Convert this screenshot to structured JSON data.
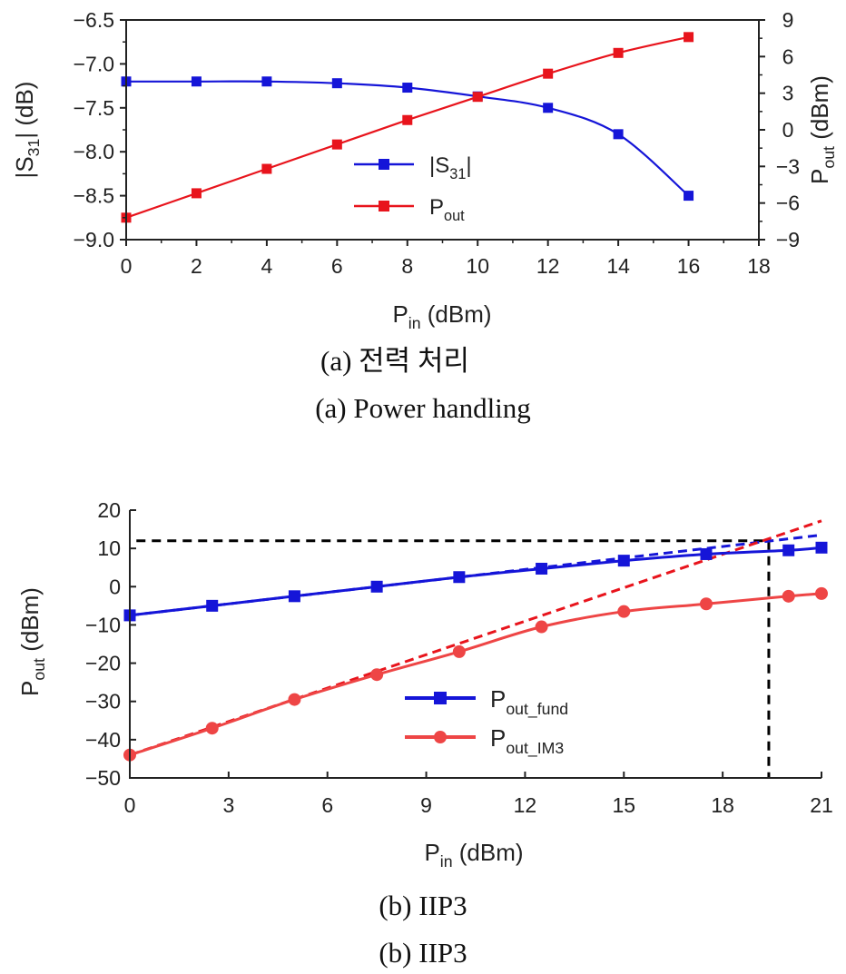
{
  "chart_data": [
    {
      "type": "line",
      "xlabel": {
        "main": "P",
        "sub": "in",
        "unit": " (dBm)"
      },
      "ylabel_left": {
        "main": "|S",
        "sub": "31",
        "unit": "| (dB)"
      },
      "ylabel_right": {
        "main": "P",
        "sub": "out",
        "unit": " (dBm)"
      },
      "xlim": [
        0,
        18
      ],
      "ylim_left": [
        -9.0,
        -6.5
      ],
      "ylim_right": [
        -9,
        9
      ],
      "xticks": [
        0,
        2,
        4,
        6,
        8,
        10,
        12,
        14,
        16,
        18
      ],
      "xtick_labels": [
        "0",
        "2",
        "4",
        "6",
        "8",
        "10",
        "12",
        "14",
        "16",
        "18"
      ],
      "yticks_left": [
        -9.0,
        -8.5,
        -8.0,
        -7.5,
        -7.0,
        -6.5
      ],
      "ytick_labels_left": [
        "−9.0",
        "−8.5",
        "−8.0",
        "−7.5",
        "−7.0",
        "−6.5"
      ],
      "yticks_right": [
        -9,
        -6,
        -3,
        0,
        3,
        6,
        9
      ],
      "ytick_labels_right": [
        "−9",
        "−6",
        "−3",
        "0",
        "3",
        "6",
        "9"
      ],
      "grid": false,
      "legend_position": "center",
      "series": [
        {
          "name": "|S",
          "name_sub": "31",
          "name_suffix": "|",
          "axis": "left",
          "color": "#1515d8",
          "x": [
            0,
            2,
            4,
            6,
            8,
            10,
            12,
            14,
            16
          ],
          "y": [
            -7.2,
            -7.2,
            -7.2,
            -7.22,
            -7.27,
            -7.37,
            -7.5,
            -7.8,
            -8.5
          ]
        },
        {
          "name": "P",
          "name_sub": "out",
          "name_suffix": "",
          "axis": "right",
          "color": "#e8141c",
          "x": [
            0,
            2,
            4,
            6,
            8,
            10,
            12,
            14,
            16
          ],
          "y": [
            -7.2,
            -5.2,
            -3.2,
            -1.2,
            0.8,
            2.7,
            4.6,
            6.3,
            7.6
          ]
        }
      ],
      "caption_ko": "(a)  전력  처리",
      "caption_en": "(a)  Power  handling"
    },
    {
      "type": "line",
      "xlabel": {
        "main": "P",
        "sub": "in",
        "unit": " (dBm)"
      },
      "ylabel": {
        "main": "P",
        "sub": "out",
        "unit": " (dBm)"
      },
      "xlim": [
        0,
        21
      ],
      "ylim": [
        -50,
        20
      ],
      "xticks": [
        0,
        3,
        6,
        9,
        12,
        15,
        18,
        21
      ],
      "xtick_labels": [
        "0",
        "3",
        "6",
        "9",
        "12",
        "15",
        "18",
        "21"
      ],
      "yticks": [
        -50,
        -40,
        -30,
        -20,
        -10,
        0,
        10,
        20
      ],
      "ytick_labels": [
        "−50",
        "−40",
        "−30",
        "−20",
        "−10",
        "0",
        "10",
        "20"
      ],
      "grid": false,
      "legend_position": "bottom-center",
      "series": [
        {
          "name": "P",
          "name_sub": "out_fund",
          "color": "#1515d8",
          "marker": "square",
          "x": [
            0,
            2.5,
            5,
            7.5,
            10,
            12.5,
            15,
            17.5,
            20,
            21
          ],
          "y": [
            -7.5,
            -5,
            -2.5,
            0,
            2.5,
            4.7,
            6.8,
            8.5,
            9.5,
            10.2
          ]
        },
        {
          "name": "P",
          "name_sub": "out_IM3",
          "color": "#ee4545",
          "marker": "circle",
          "x": [
            0,
            2.5,
            5,
            7.5,
            10,
            12.5,
            15,
            17.5,
            20,
            21
          ],
          "y": [
            -44,
            -37,
            -29.5,
            -23,
            -17,
            -10.5,
            -6.5,
            -4.5,
            -2.5,
            -1.8
          ]
        }
      ],
      "extrapolations": [
        {
          "color": "#1515d8",
          "x": [
            0,
            21
          ],
          "y": [
            -7.5,
            13.5
          ]
        },
        {
          "color": "#e8141c",
          "x": [
            0,
            21
          ],
          "y": [
            -44,
            17.2
          ]
        }
      ],
      "iip3_marker": {
        "x": 19.4,
        "y": 12
      },
      "caption_1": "(b)  IIP3",
      "caption_2": "(b)  IIP3"
    }
  ]
}
